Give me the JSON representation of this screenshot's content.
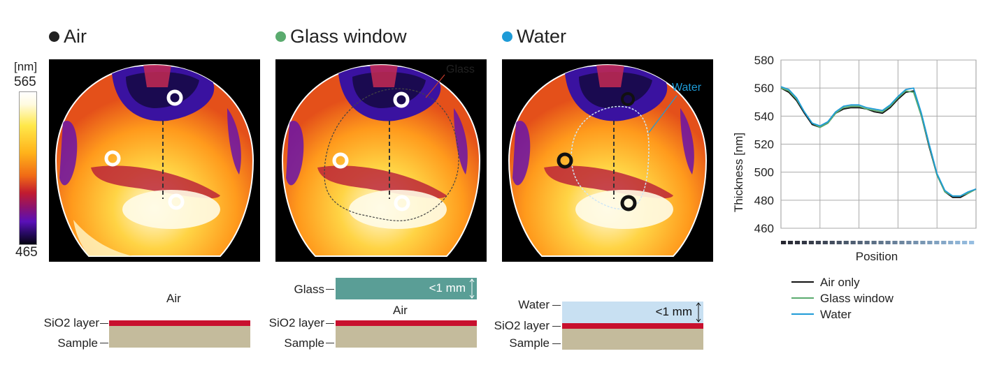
{
  "colorbar": {
    "unit": "[nm]",
    "max": "565",
    "min": "465"
  },
  "panels": [
    {
      "title": "Air",
      "dot_color": "#222222"
    },
    {
      "title": "Glass window",
      "dot_color": "#5aab6e",
      "overlay_label": "Glass",
      "overlay_color": "#c0392b"
    },
    {
      "title": "Water",
      "dot_color": "#1e9bd7",
      "overlay_label": "Water",
      "overlay_color": "#1e9bd7"
    }
  ],
  "schematics": {
    "air": {
      "medium": "Air",
      "sio2": "SiO2 layer",
      "sample": "Sample"
    },
    "glass": {
      "glass": "Glass",
      "gap": "<1 mm",
      "medium": "Air",
      "sio2": "SiO2 layer",
      "sample": "Sample"
    },
    "water": {
      "water": "Water",
      "gap": "<1 mm",
      "sio2": "SiO2 layer",
      "sample": "Sample"
    },
    "colors": {
      "sio2": "#c8102e",
      "sample": "#c4bb9c",
      "glass": "#5a9e96",
      "water": "#c8e0f2"
    }
  },
  "chart_data": {
    "type": "line",
    "xlabel": "Position",
    "ylabel": "Thickness [nm]",
    "ylim": [
      460,
      580
    ],
    "yticks": [
      460,
      480,
      500,
      520,
      540,
      560,
      580
    ],
    "x": [
      0,
      4,
      8,
      12,
      16,
      20,
      24,
      28,
      32,
      36,
      40,
      44,
      48,
      52,
      56,
      60,
      64,
      68,
      72,
      76,
      80,
      84,
      88,
      92,
      96,
      100
    ],
    "grid": true,
    "legend_position": "below",
    "series": [
      {
        "name": "Air only",
        "color": "#111111",
        "values": [
          560,
          557,
          551,
          542,
          534,
          532,
          535,
          542,
          545,
          546,
          546,
          545,
          543,
          542,
          546,
          552,
          557,
          558,
          540,
          518,
          498,
          486,
          482,
          482,
          485,
          488
        ]
      },
      {
        "name": "Glass window",
        "color": "#5aab6e",
        "values": [
          560,
          558,
          552,
          543,
          535,
          532,
          535,
          542,
          546,
          547,
          547,
          545,
          544,
          543,
          547,
          553,
          558,
          557,
          540,
          519,
          498,
          486,
          483,
          483,
          485,
          488
        ]
      },
      {
        "name": "Water",
        "color": "#1e9bd7",
        "values": [
          561,
          559,
          553,
          543,
          535,
          533,
          536,
          543,
          547,
          548,
          548,
          546,
          545,
          544,
          548,
          554,
          559,
          560,
          542,
          520,
          499,
          487,
          483,
          483,
          486,
          488
        ]
      }
    ]
  }
}
